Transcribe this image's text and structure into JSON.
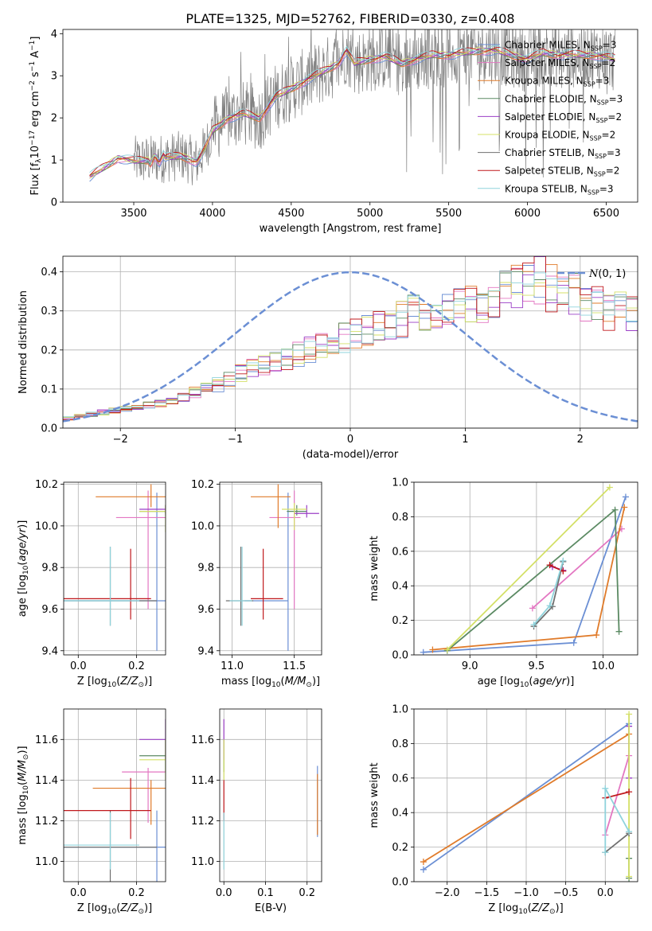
{
  "figure_title": "PLATE=1325, MJD=52762, FIBERID=0330, z=0.408",
  "series": [
    {
      "name": "Chabrier MILES",
      "nssp": "3",
      "color": "#6b8fd4"
    },
    {
      "name": "Salpeter MILES",
      "nssp": "2",
      "color": "#e377c2"
    },
    {
      "name": "Kroupa MILES",
      "nssp": "3",
      "color": "#e07b2a"
    },
    {
      "name": "Chabrier ELODIE",
      "nssp": "3",
      "color": "#5b8a63"
    },
    {
      "name": "Salpeter ELODIE",
      "nssp": "2",
      "color": "#9b3fc6"
    },
    {
      "name": "Kroupa ELODIE",
      "nssp": "2",
      "color": "#d4e067"
    },
    {
      "name": "Chabrier STELIB",
      "nssp": "3",
      "color": "#707070"
    },
    {
      "name": "Salpeter STELIB",
      "nssp": "2",
      "color": "#c0181c"
    },
    {
      "name": "Kroupa STELIB",
      "nssp": "3",
      "color": "#8fd3dc"
    }
  ],
  "chart_data": [
    {
      "id": "spectrum",
      "type": "line",
      "xlabel": "wavelength [Angstrom, rest frame]",
      "ylabel": "Flux [f",
      "xlim": [
        3050,
        6700
      ],
      "ylim": [
        0,
        4.1
      ],
      "xticks": [
        3500,
        4000,
        4500,
        5000,
        5500,
        6000,
        6500
      ],
      "yticks": [
        0,
        1,
        2,
        3,
        4
      ],
      "observed_color": "#808080",
      "model_color": "#c0181c",
      "model_knots": [
        [
          3220,
          0.6
        ],
        [
          3300,
          0.8
        ],
        [
          3400,
          1.05
        ],
        [
          3500,
          0.98
        ],
        [
          3600,
          1.0
        ],
        [
          3700,
          1.05
        ],
        [
          3800,
          1.1
        ],
        [
          3900,
          0.95
        ],
        [
          3950,
          1.25
        ],
        [
          4000,
          1.7
        ],
        [
          4100,
          2.0
        ],
        [
          4200,
          2.1
        ],
        [
          4300,
          2.0
        ],
        [
          4400,
          2.5
        ],
        [
          4500,
          2.7
        ],
        [
          4600,
          2.9
        ],
        [
          4700,
          3.1
        ],
        [
          4800,
          3.3
        ],
        [
          4850,
          3.6
        ],
        [
          4900,
          3.3
        ],
        [
          5000,
          3.4
        ],
        [
          5100,
          3.45
        ],
        [
          5200,
          3.3
        ],
        [
          5300,
          3.4
        ],
        [
          5400,
          3.5
        ],
        [
          5500,
          3.5
        ],
        [
          5600,
          3.55
        ],
        [
          5700,
          3.6
        ],
        [
          5800,
          3.6
        ],
        [
          5900,
          3.5
        ],
        [
          6000,
          3.4
        ],
        [
          6100,
          3.55
        ],
        [
          6200,
          3.5
        ],
        [
          6300,
          3.5
        ],
        [
          6400,
          3.5
        ],
        [
          6500,
          3.45
        ],
        [
          6560,
          3.4
        ]
      ],
      "legend_position": "right"
    },
    {
      "id": "residuals",
      "type": "histogram",
      "xlabel": "(data-model)/error",
      "ylabel": "Normed distribution",
      "xlim": [
        -2.5,
        2.5
      ],
      "ylim": [
        0,
        0.44
      ],
      "xticks": [
        -2,
        -1,
        0,
        1,
        2
      ],
      "yticks": [
        0.0,
        0.1,
        0.2,
        0.3,
        0.4
      ],
      "bin_width": 0.1,
      "base_profile": [
        0.025,
        0.03,
        0.035,
        0.04,
        0.045,
        0.05,
        0.055,
        0.06,
        0.065,
        0.07,
        0.08,
        0.09,
        0.1,
        0.11,
        0.125,
        0.14,
        0.15,
        0.16,
        0.165,
        0.18,
        0.19,
        0.2,
        0.21,
        0.22,
        0.23,
        0.24,
        0.25,
        0.26,
        0.27,
        0.28,
        0.29,
        0.29,
        0.3,
        0.31,
        0.31,
        0.32,
        0.32,
        0.33,
        0.35,
        0.36,
        0.37,
        0.38,
        0.36,
        0.35,
        0.34,
        0.33,
        0.32,
        0.3,
        0.3,
        0.29,
        0.28,
        0.26,
        0.25,
        0.24,
        0.23,
        0.22,
        0.21,
        0.2,
        0.2,
        0.19,
        0.18,
        0.17,
        0.16,
        0.15,
        0.14,
        0.13,
        0.12,
        0.11,
        0.1,
        0.1,
        0.09,
        0.085,
        0.08,
        0.075,
        0.07,
        0.07,
        0.065,
        0.06,
        0.06,
        0.055,
        0.05,
        0.05,
        0.045,
        0.045,
        0.04,
        0.04,
        0.04,
        0.04,
        0.04,
        0.04,
        0.04,
        0.04,
        0.04,
        0.04,
        0.04,
        0.04,
        0.04,
        0.04,
        0.04,
        0.04
      ],
      "legend_label": "N(0, 1)",
      "gaussian_color": "#6b8fd4"
    },
    {
      "id": "age-vs-Z",
      "type": "errorbar",
      "xlabel": "Z [log10(Z/Z⊙)]",
      "ylabel": "age [log10(age/yr)]",
      "xlim": [
        -0.05,
        0.3
      ],
      "ylim": [
        9.38,
        10.21
      ],
      "xticks": [
        0.0,
        0.2
      ],
      "yticks": [
        9.4,
        9.6,
        9.8,
        10.0,
        10.2
      ],
      "points": [
        {
          "s": 0,
          "x": 0.27,
          "y": 9.64,
          "xerr": [
            0.32,
            0.03
          ],
          "yerr": [
            0.24,
            0.52
          ]
        },
        {
          "s": 1,
          "x": 0.24,
          "y": 10.04,
          "xerr": [
            0.11,
            0.06
          ],
          "yerr": [
            0.44,
            0.13
          ]
        },
        {
          "s": 2,
          "x": 0.25,
          "y": 10.14,
          "xerr": [
            0.19,
            0.05
          ],
          "yerr": [
            0.05,
            0.06
          ]
        },
        {
          "s": 3,
          "x": 0.3,
          "y": 10.07,
          "xerr": [
            0.09,
            0.0
          ],
          "yerr": [
            0.02,
            0.03
          ]
        },
        {
          "s": 4,
          "x": 0.3,
          "y": 10.08,
          "xerr": [
            0.09,
            0.0
          ],
          "yerr": [
            0.02,
            0.02
          ]
        },
        {
          "s": 5,
          "x": 0.3,
          "y": 10.07,
          "xerr": [
            0.09,
            0.0
          ],
          "yerr": [
            0.1,
            0.03
          ]
        },
        {
          "s": 6,
          "x": 0.11,
          "y": 9.64,
          "xerr": [
            0.16,
            0.16
          ],
          "yerr": [
            0.12,
            0.26
          ]
        },
        {
          "s": 7,
          "x": 0.18,
          "y": 9.65,
          "xerr": [
            0.23,
            0.07
          ],
          "yerr": [
            0.1,
            0.24
          ]
        },
        {
          "s": 8,
          "x": 0.11,
          "y": 9.64,
          "xerr": [
            0.16,
            0.1
          ],
          "yerr": [
            0.12,
            0.26
          ]
        }
      ]
    },
    {
      "id": "age-vs-mass",
      "type": "errorbar",
      "xlabel": "mass [log10(M/M⊙)]",
      "ylabel": "",
      "xlim": [
        10.9,
        11.72
      ],
      "ylim": [
        9.38,
        10.21
      ],
      "xticks": [
        11.0,
        11.5
      ],
      "yticks": [
        9.4,
        9.6,
        9.8,
        10.0,
        10.2
      ],
      "points": [
        {
          "s": 0,
          "x": 11.45,
          "y": 9.64,
          "xerr": [
            0.35,
            0.0
          ],
          "yerr": [
            0.24,
            0.52
          ]
        },
        {
          "s": 1,
          "x": 11.5,
          "y": 10.04,
          "xerr": [
            0.2,
            0.05
          ],
          "yerr": [
            0.44,
            0.13
          ]
        },
        {
          "s": 2,
          "x": 11.37,
          "y": 10.14,
          "xerr": [
            0.22,
            0.1
          ],
          "yerr": [
            0.15,
            0.06
          ]
        },
        {
          "s": 3,
          "x": 11.52,
          "y": 10.07,
          "xerr": [
            0.08,
            0.08
          ],
          "yerr": [
            0.02,
            0.03
          ]
        },
        {
          "s": 4,
          "x": 11.6,
          "y": 10.06,
          "xerr": [
            0.1,
            0.1
          ],
          "yerr": [
            0.02,
            0.04
          ]
        },
        {
          "s": 5,
          "x": 11.5,
          "y": 10.08,
          "xerr": [
            0.1,
            0.1
          ],
          "yerr": [
            0.1,
            0.03
          ]
        },
        {
          "s": 6,
          "x": 11.07,
          "y": 9.64,
          "xerr": [
            0.12,
            0.1
          ],
          "yerr": [
            0.12,
            0.26
          ]
        },
        {
          "s": 7,
          "x": 11.25,
          "y": 9.65,
          "xerr": [
            0.1,
            0.16
          ],
          "yerr": [
            0.1,
            0.24
          ]
        },
        {
          "s": 8,
          "x": 11.08,
          "y": 9.64,
          "xerr": [
            0.1,
            0.08
          ],
          "yerr": [
            0.12,
            0.26
          ]
        }
      ]
    },
    {
      "id": "massweight-vs-age",
      "type": "line",
      "xlabel": "age [log10(age/yr)]",
      "ylabel": "mass weight",
      "xlim": [
        8.58,
        10.26
      ],
      "ylim": [
        0.0,
        1.0
      ],
      "xticks": [
        9.0,
        9.5,
        10.0
      ],
      "yticks": [
        0.0,
        0.2,
        0.4,
        0.6,
        0.8,
        1.0
      ],
      "lines": [
        {
          "s": 0,
          "x": [
            8.65,
            9.78,
            10.17
          ],
          "y": [
            0.015,
            0.07,
            0.915
          ]
        },
        {
          "s": 1,
          "x": [
            9.47,
            10.14
          ],
          "y": [
            0.27,
            0.73
          ]
        },
        {
          "s": 2,
          "x": [
            8.72,
            9.95,
            10.16
          ],
          "y": [
            0.03,
            0.115,
            0.855
          ]
        },
        {
          "s": 3,
          "x": [
            8.83,
            10.09,
            10.12
          ],
          "y": [
            0.025,
            0.84,
            0.135
          ]
        },
        {
          "s": 4,
          "x": [
            9.62,
            9.7
          ],
          "y": [
            0.51,
            0.49
          ]
        },
        {
          "s": 5,
          "x": [
            8.83,
            10.05
          ],
          "y": [
            0.03,
            0.97
          ]
        },
        {
          "s": 6,
          "x": [
            9.48,
            9.62,
            9.7
          ],
          "y": [
            0.165,
            0.28,
            0.54
          ]
        },
        {
          "s": 7,
          "x": [
            9.6,
            9.7
          ],
          "y": [
            0.52,
            0.485
          ]
        },
        {
          "s": 8,
          "x": [
            9.48,
            9.6,
            9.7
          ],
          "y": [
            0.175,
            0.285,
            0.545
          ]
        }
      ]
    },
    {
      "id": "mass-vs-Z",
      "type": "errorbar",
      "xlabel": "Z [log10(Z/Z⊙)]",
      "ylabel": "mass [log10(M/M⊙)]",
      "xlim": [
        -0.05,
        0.3
      ],
      "ylim": [
        10.9,
        11.75
      ],
      "xticks": [
        0.0,
        0.2
      ],
      "yticks": [
        11.0,
        11.2,
        11.4,
        11.6
      ],
      "points": [
        {
          "s": 0,
          "x": 0.27,
          "y": 11.07,
          "xerr": [
            0.32,
            0.03
          ],
          "yerr": [
            0.17,
            0.18
          ]
        },
        {
          "s": 1,
          "x": 0.24,
          "y": 11.44,
          "xerr": [
            0.09,
            0.06
          ],
          "yerr": [
            0.25,
            0.02
          ]
        },
        {
          "s": 2,
          "x": 0.25,
          "y": 11.36,
          "xerr": [
            0.2,
            0.05
          ],
          "yerr": [
            0.18,
            0.04
          ]
        },
        {
          "s": 3,
          "x": 0.3,
          "y": 11.52,
          "xerr": [
            0.09,
            0.0
          ],
          "yerr": [
            0.08,
            0.08
          ]
        },
        {
          "s": 4,
          "x": 0.3,
          "y": 11.6,
          "xerr": [
            0.09,
            0.0
          ],
          "yerr": [
            0.1,
            0.1
          ]
        },
        {
          "s": 5,
          "x": 0.3,
          "y": 11.5,
          "xerr": [
            0.09,
            0.0
          ],
          "yerr": [
            0.1,
            0.1
          ]
        },
        {
          "s": 6,
          "x": 0.11,
          "y": 11.07,
          "xerr": [
            0.16,
            0.16
          ],
          "yerr": [
            0.17,
            0.18
          ]
        },
        {
          "s": 7,
          "x": 0.18,
          "y": 11.25,
          "xerr": [
            0.23,
            0.07
          ],
          "yerr": [
            0.14,
            0.16
          ]
        },
        {
          "s": 8,
          "x": 0.11,
          "y": 11.08,
          "xerr": [
            0.16,
            0.1
          ],
          "yerr": [
            0.12,
            0.16
          ]
        }
      ]
    },
    {
      "id": "mass-vs-ebv",
      "type": "errorbar",
      "xlabel": "E(B-V)",
      "ylabel": "",
      "xlim": [
        -0.01,
        0.235
      ],
      "ylim": [
        10.9,
        11.75
      ],
      "xticks": [
        0.0,
        0.1,
        0.2
      ],
      "yticks": [
        11.0,
        11.2,
        11.4,
        11.6
      ],
      "points": [
        {
          "s": 0,
          "x": 0.225,
          "y": 11.2,
          "xerr": [
            0.0,
            0.0
          ],
          "yerr": [
            0.08,
            0.27
          ]
        },
        {
          "s": 2,
          "x": 0.225,
          "y": 11.3,
          "xerr": [
            0.0,
            0.0
          ],
          "yerr": [
            0.17,
            0.13
          ]
        },
        {
          "s": 3,
          "x": 0.0,
          "y": 11.52,
          "xerr": [
            0.0,
            0.0
          ],
          "yerr": [
            0.08,
            0.08
          ]
        },
        {
          "s": 4,
          "x": 0.0,
          "y": 11.6,
          "xerr": [
            0.0,
            0.0
          ],
          "yerr": [
            0.1,
            0.1
          ]
        },
        {
          "s": 5,
          "x": 0.0,
          "y": 11.5,
          "xerr": [
            0.0,
            0.0
          ],
          "yerr": [
            0.1,
            0.1
          ]
        },
        {
          "s": 7,
          "x": 0.0,
          "y": 11.3,
          "xerr": [
            0.0,
            0.0
          ],
          "yerr": [
            0.1,
            0.1
          ]
        },
        {
          "s": 8,
          "x": 0.0,
          "y": 11.08,
          "xerr": [
            0.0,
            0.0
          ],
          "yerr": [
            0.12,
            0.16
          ]
        }
      ]
    },
    {
      "id": "massweight-vs-Z",
      "type": "line",
      "xlabel": "Z [log10(Z/Z⊙)]",
      "ylabel": "mass weight",
      "xlim": [
        -2.42,
        0.41
      ],
      "ylim": [
        0.0,
        1.0
      ],
      "xticks": [
        -2.0,
        -1.5,
        -1.0,
        -0.5,
        0.0
      ],
      "yticks": [
        0.0,
        0.2,
        0.4,
        0.6,
        0.8,
        1.0
      ],
      "lines": [
        {
          "s": 0,
          "x": [
            -2.3,
            0.3
          ],
          "y": [
            0.07,
            0.915
          ]
        },
        {
          "s": 1,
          "x": [
            0.0,
            0.3
          ],
          "y": [
            0.27,
            0.73
          ]
        },
        {
          "s": 2,
          "x": [
            -2.3,
            0.3
          ],
          "y": [
            0.115,
            0.855
          ]
        },
        {
          "s": 3,
          "x": [
            0.3,
            0.3
          ],
          "y": [
            0.02,
            0.135
          ]
        },
        {
          "s": 4,
          "x": [
            0.3,
            0.3
          ],
          "y": [
            0.6,
            0.9
          ]
        },
        {
          "s": 5,
          "x": [
            0.3,
            0.3
          ],
          "y": [
            0.03,
            0.97
          ]
        },
        {
          "s": 6,
          "x": [
            0.0,
            0.3
          ],
          "y": [
            0.17,
            0.28
          ]
        },
        {
          "s": 7,
          "x": [
            0.0,
            0.3
          ],
          "y": [
            0.485,
            0.52
          ]
        },
        {
          "s": 8,
          "x": [
            0.0,
            0.0,
            0.3
          ],
          "y": [
            0.17,
            0.54,
            0.29
          ]
        }
      ]
    }
  ]
}
